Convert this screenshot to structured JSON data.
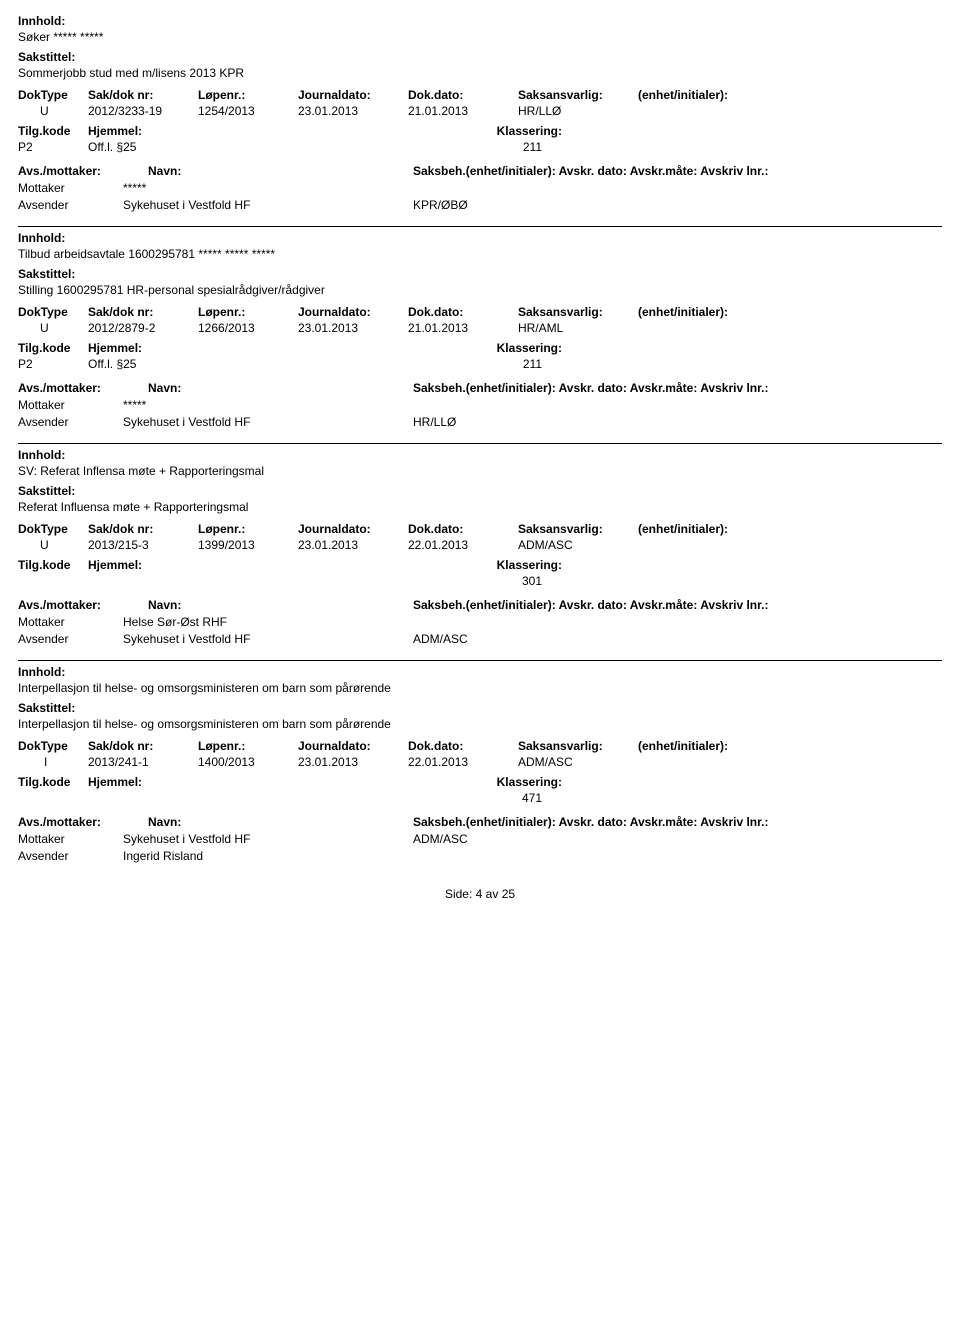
{
  "labels": {
    "innhold": "Innhold:",
    "sakstittel": "Sakstittel:",
    "doktype": "DokType",
    "sakdoknr": "Sak/dok nr:",
    "lopenr": "Løpenr.:",
    "journaldato": "Journaldato:",
    "dokdato": "Dok.dato:",
    "saksansvarlig": "Saksansvarlig:",
    "enhet_initialer": "(enhet/initialer):",
    "tilgkode": "Tilg.kode",
    "hjemmel": "Hjemmel:",
    "klassering": "Klassering:",
    "avs_mottaker": "Avs./mottaker:",
    "navn": "Navn:",
    "saksbeh_full": "Saksbeh.(enhet/initialer): Avskr. dato:  Avskr.måte: Avskriv lnr.:",
    "mottaker": "Mottaker",
    "avsender": "Avsender"
  },
  "records": [
    {
      "innhold": "Søker ***** *****",
      "sakstittel": "Sommerjobb stud med m/lisens 2013 KPR",
      "doktype": "U",
      "sakdok": "2012/3233-19",
      "lopenr": "1254/2013",
      "journaldato": "23.01.2013",
      "dokdato": "21.01.2013",
      "saksansvarlig": "HR/LLØ",
      "has_tilg": true,
      "tilgkode": "P2",
      "hjemmel": "Off.l. §25",
      "klassering": "211",
      "mottaker_name": "*****",
      "mottaker_ref": "",
      "avsender_name": "Sykehuset i Vestfold HF",
      "avsender_ref": "KPR/ØBØ"
    },
    {
      "innhold": "Tilbud arbeidsavtale 1600295781 ***** ***** *****",
      "sakstittel": "Stilling 1600295781 HR-personal spesialrådgiver/rådgiver",
      "doktype": "U",
      "sakdok": "2012/2879-2",
      "lopenr": "1266/2013",
      "journaldato": "23.01.2013",
      "dokdato": "21.01.2013",
      "saksansvarlig": "HR/AML",
      "has_tilg": true,
      "tilgkode": "P2",
      "hjemmel": "Off.l. §25",
      "klassering": "211",
      "mottaker_name": "*****",
      "mottaker_ref": "",
      "avsender_name": "Sykehuset i Vestfold HF",
      "avsender_ref": "HR/LLØ"
    },
    {
      "innhold": "SV: Referat Inflensa møte + Rapporteringsmal",
      "sakstittel": "Referat Influensa møte + Rapporteringsmal",
      "doktype": "U",
      "sakdok": "2013/215-3",
      "lopenr": "1399/2013",
      "journaldato": "23.01.2013",
      "dokdato": "22.01.2013",
      "saksansvarlig": "ADM/ASC",
      "has_tilg": false,
      "tilgkode": "",
      "hjemmel": "",
      "klassering": "301",
      "mottaker_name": "Helse Sør-Øst RHF",
      "mottaker_ref": "",
      "avsender_name": "Sykehuset i Vestfold HF",
      "avsender_ref": "ADM/ASC"
    },
    {
      "innhold": "Interpellasjon til helse- og omsorgsministeren om barn som pårørende",
      "sakstittel": "Interpellasjon til helse- og omsorgsministeren om barn som pårørende",
      "doktype": "I",
      "sakdok": "2013/241-1",
      "lopenr": "1400/2013",
      "journaldato": "23.01.2013",
      "dokdato": "22.01.2013",
      "saksansvarlig": "ADM/ASC",
      "has_tilg": false,
      "tilgkode": "",
      "hjemmel": "",
      "klassering": "471",
      "mottaker_name": "Sykehuset i Vestfold HF",
      "mottaker_ref": "ADM/ASC",
      "avsender_name": "Ingerid Risland",
      "avsender_ref": ""
    }
  ],
  "footer": {
    "side": "Side:",
    "page": "4",
    "av": "av",
    "total": "25"
  },
  "style": {
    "text_color": "#000000",
    "background": "#ffffff",
    "divider_color": "#000000",
    "font_size_body": 12,
    "font_family": "Verdana"
  }
}
